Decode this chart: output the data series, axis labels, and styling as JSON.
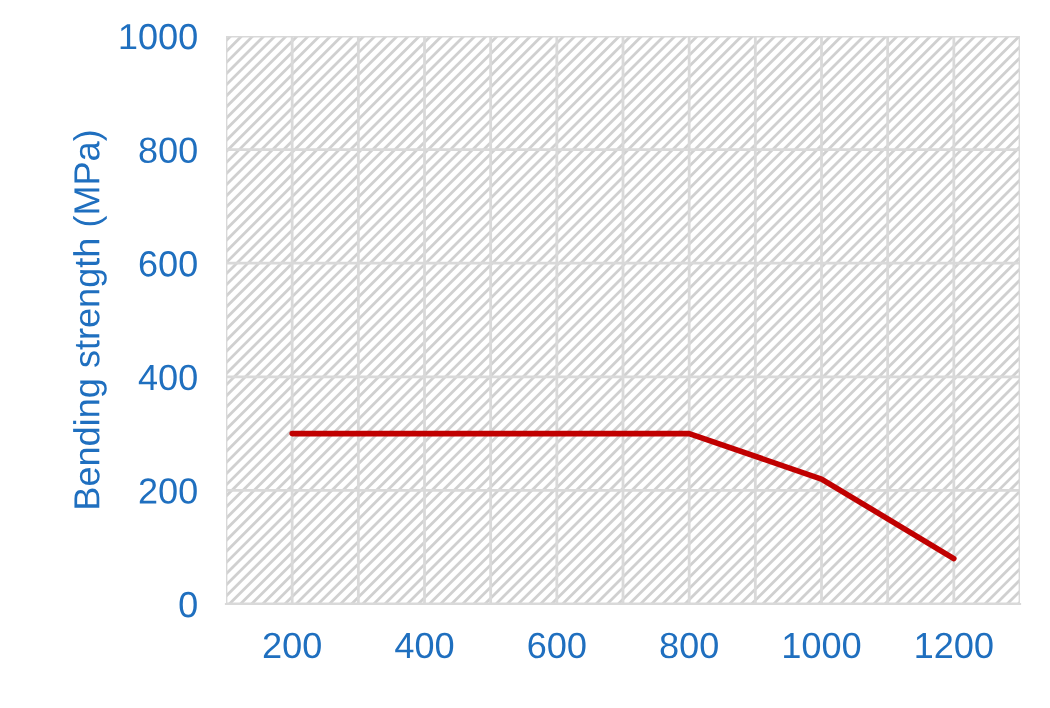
{
  "chart_data": {
    "type": "line",
    "ylabel": "Bending strength (MPa)",
    "x": [
      200,
      400,
      600,
      800,
      1000,
      1200
    ],
    "series": [
      {
        "color": "#c00000",
        "values": [
          300,
          300,
          300,
          300,
          220,
          80
        ]
      }
    ],
    "xlim": [
      100,
      1300
    ],
    "xticks": [
      {
        "value": 100,
        "label": null
      },
      200,
      {
        "value": 300,
        "label": null
      },
      400,
      {
        "value": 500,
        "label": null
      },
      600,
      {
        "value": 700,
        "label": null
      },
      800,
      {
        "value": 900,
        "label": null
      },
      1000,
      {
        "value": 1100,
        "label": null
      },
      1200,
      {
        "value": 1300,
        "label": null
      }
    ],
    "ylim": [
      0,
      1000
    ],
    "yticks": [
      0,
      200,
      400,
      600,
      800,
      1000
    ],
    "grid": true,
    "legend": false,
    "marker": "none",
    "line_style": "solid"
  }
}
